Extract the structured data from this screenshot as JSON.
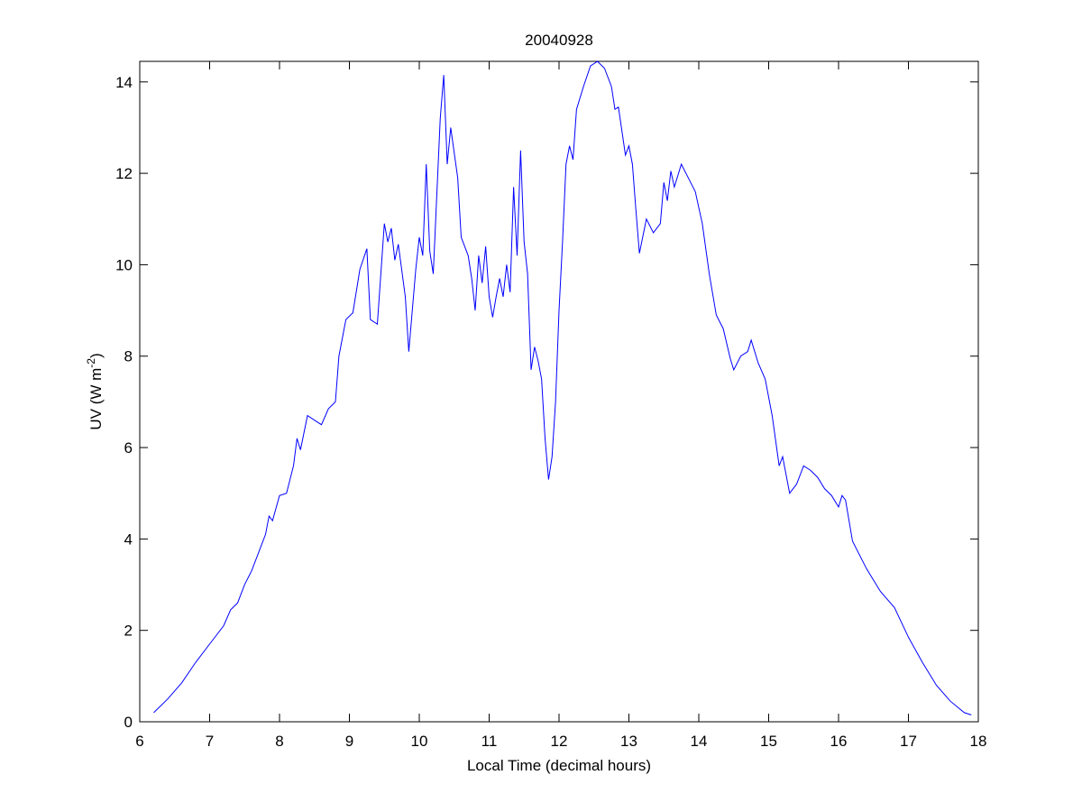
{
  "chart_data": {
    "type": "line",
    "title": "20040928",
    "xlabel": "Local Time (decimal hours)",
    "ylabel": [
      "UV (W m",
      "-2",
      ")"
    ],
    "xlim": [
      6,
      18
    ],
    "xticks": [
      6,
      7,
      8,
      9,
      10,
      11,
      12,
      13,
      14,
      15,
      16,
      17,
      18
    ],
    "ylim": [
      0,
      14.45
    ],
    "yticks": [
      0,
      2,
      4,
      6,
      8,
      10,
      12,
      14
    ],
    "grid": false,
    "x": [
      6.2,
      6.4,
      6.6,
      6.8,
      7.0,
      7.2,
      7.3,
      7.4,
      7.5,
      7.6,
      7.7,
      7.8,
      7.85,
      7.9,
      8.0,
      8.1,
      8.2,
      8.25,
      8.3,
      8.4,
      8.5,
      8.6,
      8.7,
      8.8,
      8.85,
      8.95,
      9.05,
      9.15,
      9.25,
      9.3,
      9.4,
      9.5,
      9.55,
      9.6,
      9.65,
      9.7,
      9.8,
      9.85,
      9.95,
      10.0,
      10.05,
      10.1,
      10.15,
      10.2,
      10.25,
      10.3,
      10.35,
      10.4,
      10.45,
      10.55,
      10.6,
      10.7,
      10.75,
      10.8,
      10.85,
      10.9,
      10.95,
      11.0,
      11.05,
      11.1,
      11.15,
      11.2,
      11.25,
      11.3,
      11.35,
      11.4,
      11.45,
      11.5,
      11.55,
      11.6,
      11.65,
      11.7,
      11.75,
      11.8,
      11.85,
      11.9,
      11.95,
      12.0,
      12.05,
      12.1,
      12.15,
      12.2,
      12.25,
      12.35,
      12.45,
      12.55,
      12.65,
      12.75,
      12.8,
      12.85,
      12.95,
      13.0,
      13.05,
      13.1,
      13.15,
      13.25,
      13.35,
      13.45,
      13.5,
      13.55,
      13.6,
      13.65,
      13.75,
      13.85,
      13.95,
      14.05,
      14.15,
      14.25,
      14.35,
      14.45,
      14.5,
      14.6,
      14.7,
      14.75,
      14.85,
      14.95,
      15.05,
      15.15,
      15.2,
      15.3,
      15.4,
      15.5,
      15.6,
      15.7,
      15.8,
      15.9,
      16.0,
      16.05,
      16.1,
      16.2,
      16.4,
      16.6,
      16.8,
      17.0,
      17.2,
      17.4,
      17.6,
      17.8,
      17.9
    ],
    "series": [
      {
        "color": "#0000ff",
        "values": [
          0.2,
          0.5,
          0.85,
          1.3,
          1.7,
          2.1,
          2.45,
          2.6,
          3.0,
          3.3,
          3.7,
          4.1,
          4.5,
          4.4,
          4.95,
          5.0,
          5.6,
          6.2,
          5.95,
          6.7,
          6.6,
          6.5,
          6.85,
          7.0,
          8.0,
          8.8,
          8.95,
          9.9,
          10.35,
          8.8,
          8.7,
          10.9,
          10.5,
          10.8,
          10.1,
          10.45,
          9.3,
          8.1,
          9.9,
          10.6,
          10.2,
          12.2,
          10.3,
          9.8,
          11.5,
          13.2,
          14.15,
          12.2,
          13.0,
          11.9,
          10.6,
          10.2,
          9.7,
          9.0,
          10.2,
          9.6,
          10.4,
          9.3,
          8.85,
          9.3,
          9.7,
          9.3,
          10.0,
          9.4,
          11.7,
          10.2,
          12.5,
          10.5,
          9.8,
          7.7,
          8.2,
          7.9,
          7.5,
          6.2,
          5.3,
          5.8,
          7.0,
          9.0,
          10.5,
          12.2,
          12.6,
          12.3,
          13.4,
          13.9,
          14.35,
          14.45,
          14.3,
          13.9,
          13.4,
          13.45,
          12.4,
          12.6,
          12.2,
          11.2,
          10.25,
          11.0,
          10.7,
          10.9,
          11.8,
          11.4,
          12.05,
          11.7,
          12.2,
          11.9,
          11.6,
          10.9,
          9.8,
          8.9,
          8.6,
          7.95,
          7.7,
          8.0,
          8.1,
          8.35,
          7.85,
          7.5,
          6.7,
          5.6,
          5.8,
          5.0,
          5.2,
          5.6,
          5.5,
          5.35,
          5.1,
          4.95,
          4.7,
          4.95,
          4.85,
          3.95,
          3.35,
          2.85,
          2.5,
          1.85,
          1.3,
          0.8,
          0.45,
          0.2,
          0.15
        ]
      }
    ]
  }
}
